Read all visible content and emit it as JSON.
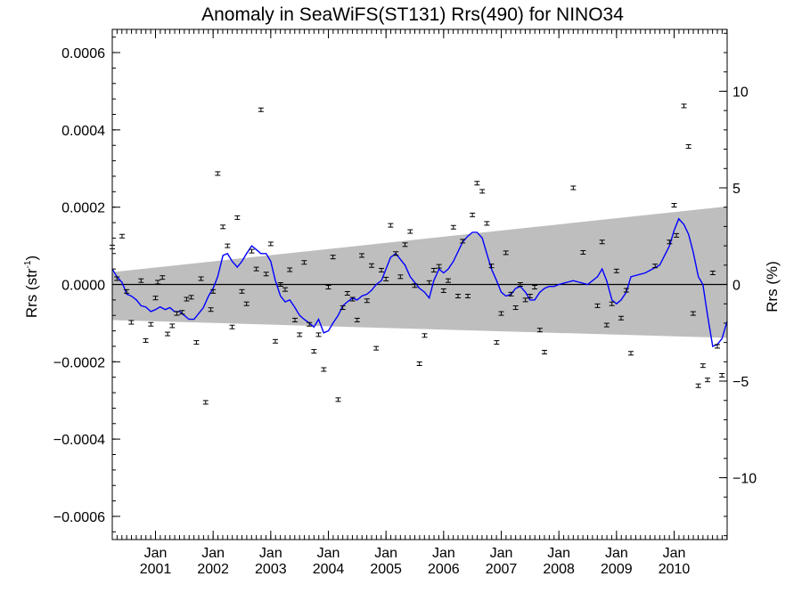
{
  "chart_data": {
    "type": "scatter",
    "title": "Anomaly in SeaWiFS(ST131) Rrs(490) for NINO34",
    "ylabel_left": "Rrs (str",
    "ylabel_left_sup": "-1",
    "ylabel_left_close": ")",
    "ylabel_right": "Rrs (%)",
    "xlim": [
      2000.25,
      2010.92
    ],
    "ylim": [
      -0.00066,
      0.00066
    ],
    "y2lim": [
      -13.2,
      13.2
    ],
    "yticks": [
      {
        "v": 0.0006,
        "label": "0.0006"
      },
      {
        "v": 0.0004,
        "label": "0.0004"
      },
      {
        "v": 0.0002,
        "label": "0.0002"
      },
      {
        "v": 0.0,
        "label": "0.0000"
      },
      {
        "v": -0.0002,
        "label": "−0.0002"
      },
      {
        "v": -0.0004,
        "label": "−0.0004"
      },
      {
        "v": -0.0006,
        "label": "−0.0006"
      }
    ],
    "y2ticks": [
      {
        "v": 10,
        "label": "10"
      },
      {
        "v": 5,
        "label": "5"
      },
      {
        "v": 0,
        "label": "0"
      },
      {
        "v": -5,
        "label": "−5"
      },
      {
        "v": -10,
        "label": "−10"
      }
    ],
    "xticks": [
      {
        "v": 2001.0,
        "month": "Jan",
        "year": "2001"
      },
      {
        "v": 2002.0,
        "month": "Jan",
        "year": "2002"
      },
      {
        "v": 2003.0,
        "month": "Jan",
        "year": "2003"
      },
      {
        "v": 2004.0,
        "month": "Jan",
        "year": "2004"
      },
      {
        "v": 2005.0,
        "month": "Jan",
        "year": "2005"
      },
      {
        "v": 2006.0,
        "month": "Jan",
        "year": "2006"
      },
      {
        "v": 2007.0,
        "month": "Jan",
        "year": "2007"
      },
      {
        "v": 2008.0,
        "month": "Jan",
        "year": "2008"
      },
      {
        "v": 2009.0,
        "month": "Jan",
        "year": "2009"
      },
      {
        "v": 2010.0,
        "month": "Jan",
        "year": "2010"
      }
    ],
    "band": {
      "x": [
        2000.25,
        2010.92
      ],
      "upper": [
        3.2e-05,
        0.000202
      ],
      "lower": [
        -9.2e-05,
        -0.000138
      ],
      "color": "#bebebe"
    },
    "zero_line": 0,
    "points": [
      [
        2000.25,
        9.7e-05
      ],
      [
        2000.33,
        1.5e-05
      ],
      [
        2000.42,
        0.000125
      ],
      [
        2000.5,
        -1.8e-05
      ],
      [
        2000.58,
        -9.8e-05
      ],
      [
        2000.75,
        1e-05
      ],
      [
        2000.83,
        -0.000145
      ],
      [
        2000.92,
        -0.000103
      ],
      [
        2001.0,
        -3.5e-05
      ],
      [
        2001.04,
        6e-06
      ],
      [
        2001.12,
        1.8e-05
      ],
      [
        2001.21,
        -0.000128
      ],
      [
        2001.29,
        -0.000107
      ],
      [
        2001.37,
        -7.5e-05
      ],
      [
        2001.46,
        -7.2e-05
      ],
      [
        2001.54,
        -3.8e-05
      ],
      [
        2001.62,
        -3.3e-05
      ],
      [
        2001.71,
        -0.00015
      ],
      [
        2001.79,
        1.5e-05
      ],
      [
        2001.87,
        -0.000305
      ],
      [
        2001.96,
        -6.5e-05
      ],
      [
        2002.0,
        -1.8e-05
      ],
      [
        2002.08,
        0.000287
      ],
      [
        2002.17,
        0.000149
      ],
      [
        2002.25,
        0.0001
      ],
      [
        2002.33,
        -0.00011
      ],
      [
        2002.42,
        0.000173
      ],
      [
        2002.5,
        -1.8e-05
      ],
      [
        2002.58,
        -5e-05
      ],
      [
        2002.67,
        8.6e-05
      ],
      [
        2002.75,
        4e-05
      ],
      [
        2002.83,
        0.000452
      ],
      [
        2002.92,
        2.7e-05
      ],
      [
        2003.0,
        0.000105
      ],
      [
        2003.08,
        -0.000147
      ],
      [
        2003.17,
        0.0
      ],
      [
        2003.25,
        -1.3e-05
      ],
      [
        2003.33,
        3.8e-05
      ],
      [
        2003.42,
        -9.2e-05
      ],
      [
        2003.5,
        -0.00013
      ],
      [
        2003.58,
        5.7e-05
      ],
      [
        2003.67,
        -0.000103
      ],
      [
        2003.75,
        -0.000173
      ],
      [
        2003.83,
        -0.00013
      ],
      [
        2003.92,
        -0.00022
      ],
      [
        2004.0,
        -7e-06
      ],
      [
        2004.08,
        7.1e-05
      ],
      [
        2004.17,
        -0.000298
      ],
      [
        2004.25,
        -6e-05
      ],
      [
        2004.33,
        -2.3e-05
      ],
      [
        2004.42,
        -3.8e-05
      ],
      [
        2004.5,
        -9.2e-05
      ],
      [
        2004.58,
        7.5e-05
      ],
      [
        2004.67,
        -4.2e-05
      ],
      [
        2004.75,
        4.9e-05
      ],
      [
        2004.83,
        -0.000165
      ],
      [
        2004.92,
        3.7e-05
      ],
      [
        2005.0,
        1.4e-05
      ],
      [
        2005.08,
        0.000153
      ],
      [
        2005.17,
        8e-05
      ],
      [
        2005.25,
        2e-05
      ],
      [
        2005.33,
        0.000103
      ],
      [
        2005.42,
        0.000137
      ],
      [
        2005.5,
        -3e-06
      ],
      [
        2005.58,
        -0.000205
      ],
      [
        2005.67,
        -0.000132
      ],
      [
        2005.75,
        5e-06
      ],
      [
        2005.83,
        3.7e-05
      ],
      [
        2005.92,
        4.7e-05
      ],
      [
        2006.0,
        -1.6e-05
      ],
      [
        2006.08,
        1e-05
      ],
      [
        2006.17,
        0.000148
      ],
      [
        2006.25,
        -3e-05
      ],
      [
        2006.33,
        0.000112
      ],
      [
        2006.42,
        -3e-05
      ],
      [
        2006.5,
        0.00018
      ],
      [
        2006.58,
        0.000262
      ],
      [
        2006.67,
        0.000241
      ],
      [
        2006.75,
        0.000158
      ],
      [
        2006.83,
        4.8e-05
      ],
      [
        2006.92,
        -0.00015
      ],
      [
        2007.0,
        -7.5e-05
      ],
      [
        2007.08,
        8.2e-05
      ],
      [
        2007.17,
        -2.5e-05
      ],
      [
        2007.25,
        -6e-05
      ],
      [
        2007.33,
        0.0
      ],
      [
        2007.42,
        -4e-05
      ],
      [
        2007.5,
        -3e-05
      ],
      [
        2007.58,
        -7e-06
      ],
      [
        2007.67,
        -0.000118
      ],
      [
        2007.75,
        -0.000175
      ],
      [
        2008.25,
        0.00025
      ],
      [
        2008.42,
        8.3e-05
      ],
      [
        2008.67,
        -5.5e-05
      ],
      [
        2008.75,
        0.00011
      ],
      [
        2008.83,
        -0.000105
      ],
      [
        2008.92,
        -5e-05
      ],
      [
        2009.0,
        3.5e-05
      ],
      [
        2009.08,
        -8.7e-05
      ],
      [
        2009.17,
        -1.5e-05
      ],
      [
        2009.25,
        -0.000178
      ],
      [
        2009.67,
        4.8e-05
      ],
      [
        2009.92,
        0.00011
      ],
      [
        2010.0,
        0.000205
      ],
      [
        2010.04,
        0.000127
      ],
      [
        2010.17,
        0.000462
      ],
      [
        2010.25,
        0.000357
      ],
      [
        2010.33,
        -7.5e-05
      ],
      [
        2010.42,
        -0.000262
      ],
      [
        2010.5,
        -0.00021
      ],
      [
        2010.58,
        -0.000247
      ],
      [
        2010.67,
        3e-05
      ],
      [
        2010.75,
        -0.00016
      ],
      [
        2010.83,
        -0.000235
      ]
    ],
    "series": [
      {
        "color": "#0000ff",
        "x": [
          2000.25,
          2000.33,
          2000.42,
          2000.5,
          2000.58,
          2000.67,
          2000.75,
          2000.83,
          2000.92,
          2001.0,
          2001.08,
          2001.17,
          2001.25,
          2001.33,
          2001.42,
          2001.5,
          2001.58,
          2001.67,
          2001.75,
          2001.83,
          2001.92,
          2002.0,
          2002.08,
          2002.17,
          2002.25,
          2002.33,
          2002.42,
          2002.5,
          2002.58,
          2002.67,
          2002.75,
          2002.83,
          2002.92,
          2003.0,
          2003.08,
          2003.17,
          2003.25,
          2003.33,
          2003.42,
          2003.5,
          2003.58,
          2003.67,
          2003.75,
          2003.83,
          2003.92,
          2004.0,
          2004.08,
          2004.17,
          2004.25,
          2004.33,
          2004.42,
          2004.5,
          2004.58,
          2004.67,
          2004.75,
          2004.83,
          2004.92,
          2005.0,
          2005.08,
          2005.17,
          2005.25,
          2005.33,
          2005.42,
          2005.5,
          2005.58,
          2005.67,
          2005.75,
          2005.83,
          2005.92,
          2006.0,
          2006.08,
          2006.17,
          2006.25,
          2006.33,
          2006.42,
          2006.5,
          2006.58,
          2006.67,
          2006.75,
          2006.83,
          2006.92,
          2007.0,
          2007.08,
          2007.17,
          2007.25,
          2007.33,
          2007.42,
          2007.5,
          2007.58,
          2007.67,
          2007.75,
          2007.83,
          2007.92,
          2008.0,
          2008.25,
          2008.5,
          2008.67,
          2008.75,
          2008.83,
          2008.92,
          2009.0,
          2009.08,
          2009.17,
          2009.25,
          2009.5,
          2009.75,
          2009.92,
          2010.0,
          2010.08,
          2010.17,
          2010.25,
          2010.33,
          2010.42,
          2010.5,
          2010.58,
          2010.67,
          2010.75,
          2010.83,
          2010.92
        ],
        "y": [
          4e-05,
          2e-05,
          5e-06,
          -2.5e-05,
          -3e-05,
          -4e-05,
          -5.5e-05,
          -5.8e-05,
          -7e-05,
          -6.5e-05,
          -5.8e-05,
          -6.5e-05,
          -6e-05,
          -7e-05,
          -7e-05,
          -8e-05,
          -9e-05,
          -9e-05,
          -7.5e-05,
          -6e-05,
          -3e-05,
          -1e-05,
          2e-05,
          7.5e-05,
          8e-05,
          6e-05,
          4.5e-05,
          6e-05,
          8e-05,
          0.0001,
          9e-05,
          8e-05,
          8e-05,
          6e-05,
          1e-05,
          -3e-05,
          -4.5e-05,
          -4e-05,
          -6e-05,
          -8e-05,
          -9e-05,
          -0.0001,
          -0.00011,
          -9e-05,
          -0.000125,
          -0.00012,
          -0.0001,
          -8e-05,
          -5.5e-05,
          -4.5e-05,
          -3.5e-05,
          -4e-05,
          -3e-05,
          -2.5e-05,
          -1.5e-05,
          0.0,
          1e-05,
          4e-05,
          7e-05,
          8e-05,
          6.5e-05,
          5e-05,
          2e-05,
          5e-06,
          -1e-05,
          -2e-05,
          -3.5e-05,
          1e-05,
          4e-05,
          3e-05,
          4e-05,
          6e-05,
          8.5e-05,
          0.00011,
          0.000125,
          0.000135,
          0.000135,
          0.00012,
          8e-05,
          4e-05,
          1e-05,
          -2e-05,
          -3e-05,
          -2.5e-05,
          -1e-05,
          -5e-06,
          -2e-05,
          -4e-05,
          -4e-05,
          -2e-05,
          -1e-05,
          -5e-06,
          -5e-06,
          0.0,
          1e-05,
          0.0,
          2e-05,
          4e-05,
          1e-05,
          -4e-05,
          -5e-05,
          -4e-05,
          -2e-05,
          2e-05,
          3e-05,
          5e-05,
          0.0001,
          0.00014,
          0.00017,
          0.000155,
          0.00013,
          8.5e-05,
          2e-05,
          0.0,
          -8e-05,
          -0.00016,
          -0.000155,
          -0.00014,
          -9.5e-05
        ]
      }
    ]
  }
}
